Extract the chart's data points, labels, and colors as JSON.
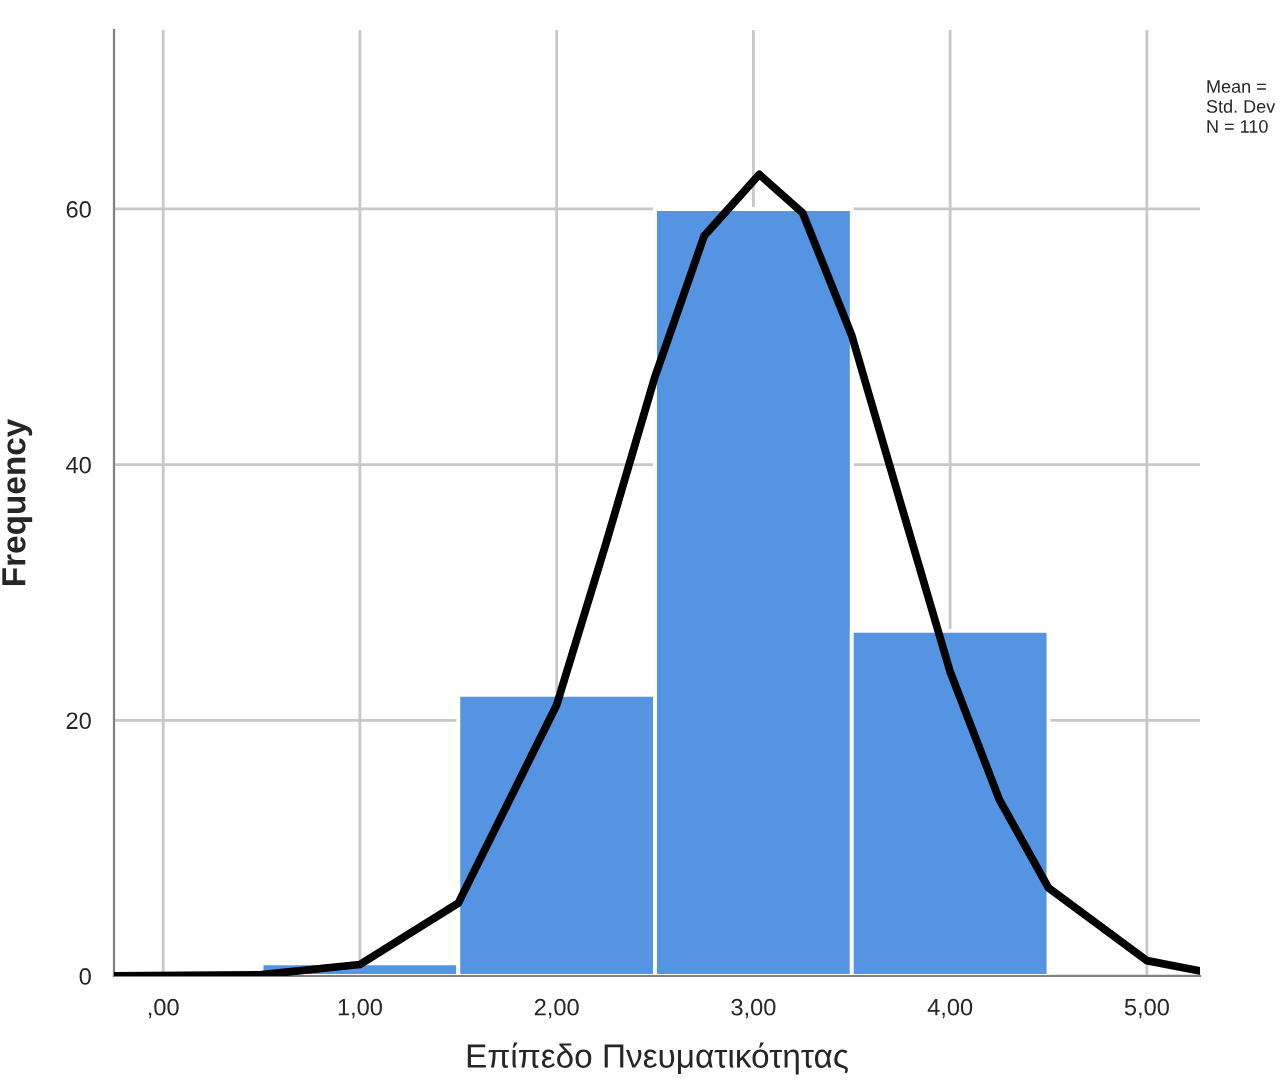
{
  "chart_data": {
    "type": "histogram",
    "xlabel": "Επίπεδο Πνευματικότητας",
    "ylabel": "Frequency",
    "annotations": [
      "Mean =",
      "Std. Dev",
      "N = 110"
    ],
    "series": [
      {
        "bins": [
          0.5,
          1.5,
          2.5,
          3.5,
          4.5
        ],
        "values": [
          1,
          22,
          60,
          27
        ],
        "color": "#5593e3"
      },
      {
        "type": "line",
        "color": "#000000",
        "x": [
          -0.25,
          0.5,
          1.0,
          1.5,
          2.0,
          2.25,
          2.5,
          2.75,
          3.03,
          3.25,
          3.5,
          3.75,
          4.0,
          4.25,
          4.5,
          5.0,
          5.27
        ],
        "values": [
          0,
          0.1,
          0.9,
          5.7,
          21.2,
          33.8,
          46.9,
          57.9,
          62.7,
          59.7,
          50.1,
          36.9,
          23.8,
          13.8,
          6.9,
          1.2,
          0.4
        ]
      }
    ],
    "xlim": [
      -0.25,
      5.27
    ],
    "ylim": [
      0,
      74
    ],
    "xticks": [
      {
        "value": 0,
        "label": ",00"
      },
      {
        "value": 1,
        "label": "1,00"
      },
      {
        "value": 2,
        "label": "2,00"
      },
      {
        "value": 3,
        "label": "3,00"
      },
      {
        "value": 4,
        "label": "4,00"
      },
      {
        "value": 5,
        "label": "5,00"
      }
    ],
    "yticks": [
      0,
      20,
      40,
      60
    ],
    "grid": true,
    "legend": false
  }
}
